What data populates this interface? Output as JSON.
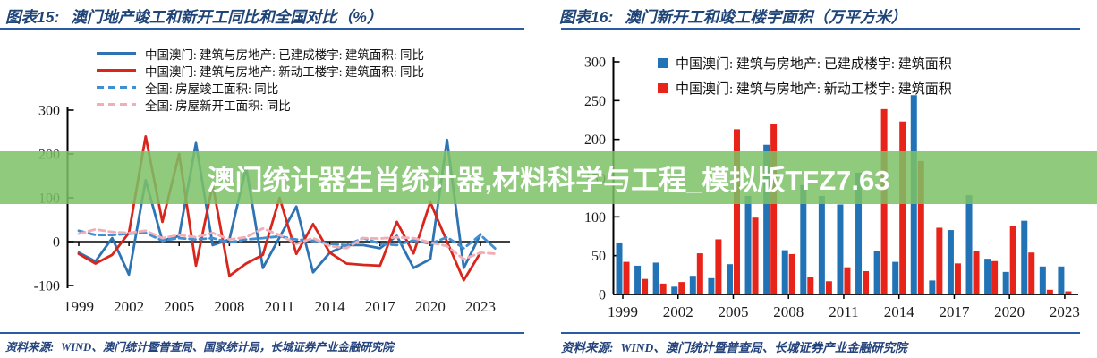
{
  "banner": {
    "text": "澳门统计器生肖统计器,材料科学与工程_模拟版TFZ7.63",
    "bg_color": "#7dc266",
    "text_color": "#ffffff"
  },
  "panels": [
    {
      "title_prefix": "图表15:",
      "title": "澳门地产竣工和新开工同比和全国对比（%）",
      "source_label": "资料来源:",
      "source": "WIND、澳门统计暨普查局、国家统计局，长城证券产业金融研究院"
    },
    {
      "title_prefix": "图表16:",
      "title": "澳门新开工和竣工楼宇面积（万平方米）",
      "source_label": "资料来源:",
      "source": "WIND、澳门统计暨普查局、长城证券产业金融研究院"
    }
  ],
  "chart_data": [
    {
      "type": "line",
      "title": "澳门地产竣工和新开工同比和全国对比（%）",
      "x": [
        1999,
        2000,
        2001,
        2002,
        2003,
        2004,
        2005,
        2006,
        2007,
        2008,
        2009,
        2010,
        2011,
        2012,
        2013,
        2014,
        2015,
        2016,
        2017,
        2018,
        2019,
        2020,
        2021,
        2022,
        2023,
        2024
      ],
      "xticks": [
        1999,
        2002,
        2005,
        2008,
        2011,
        2014,
        2017,
        2020,
        2023
      ],
      "yticks": [
        300,
        200,
        100,
        0,
        -100
      ],
      "ylim": [
        -100,
        300
      ],
      "grid": false,
      "legend_position": "top-left-inside",
      "series": [
        {
          "name": "中国澳门: 建筑与房地产: 已建成楼宇: 建筑面积: 同比",
          "color": "#2e74b5",
          "style": "solid",
          "values": [
            -25,
            -45,
            8,
            -75,
            140,
            2,
            13,
            225,
            -8,
            5,
            170,
            -60,
            10,
            80,
            -70,
            -25,
            -8,
            -8,
            -15,
            13,
            -60,
            -40,
            232,
            -60,
            17,
            null
          ]
        },
        {
          "name": "中国澳门: 建筑与房地产: 新动工楼宇: 建筑面积: 同比",
          "color": "#d8261c",
          "style": "solid",
          "values": [
            -28,
            -50,
            -30,
            20,
            240,
            45,
            200,
            -55,
            130,
            -78,
            -50,
            -30,
            100,
            -28,
            40,
            -25,
            -50,
            -53,
            -55,
            45,
            -27,
            90,
            0,
            -88,
            -25,
            null
          ]
        },
        {
          "name": "全国: 房屋竣工面积: 同比",
          "color": "#3f8fd2",
          "style": "dashed",
          "values": [
            25,
            15,
            15,
            18,
            20,
            2,
            8,
            5,
            8,
            -2,
            5,
            8,
            12,
            5,
            2,
            -5,
            -8,
            8,
            -5,
            -8,
            3,
            -5,
            10,
            -15,
            15,
            -20
          ]
        },
        {
          "name": "全国: 房屋新开工面积: 同比",
          "color": "#f2aeb6",
          "style": "dashed",
          "values": [
            18,
            28,
            22,
            20,
            25,
            8,
            15,
            10,
            20,
            5,
            10,
            30,
            15,
            -5,
            8,
            -10,
            -15,
            8,
            7,
            10,
            8,
            -2,
            -10,
            -40,
            -25,
            -28
          ]
        }
      ]
    },
    {
      "type": "bar",
      "title": "澳门新开工和竣工楼宇面积（万平方米）",
      "categories": [
        1999,
        2000,
        2001,
        2002,
        2003,
        2004,
        2005,
        2006,
        2007,
        2008,
        2009,
        2010,
        2011,
        2012,
        2013,
        2014,
        2015,
        2016,
        2017,
        2018,
        2019,
        2020,
        2021,
        2022,
        2023
      ],
      "xticks": [
        1999,
        2002,
        2005,
        2008,
        2011,
        2014,
        2017,
        2020,
        2023
      ],
      "yticks": [
        0,
        50,
        100,
        150,
        200,
        250,
        300
      ],
      "ylim": [
        0,
        300
      ],
      "grid": false,
      "legend_position": "top-inside",
      "series": [
        {
          "name": "中国澳门: 建筑与房地产: 已建成楼宇: 建筑面积",
          "color": "#2173b6",
          "values": [
            67,
            37,
            41,
            10,
            24,
            21,
            39,
            127,
            193,
            57,
            141,
            127,
            116,
            157,
            56,
            42,
            257,
            18,
            83,
            128,
            46,
            29,
            95,
            36,
            36
          ]
        },
        {
          "name": "中国澳门: 建筑与房地产: 新动工楼宇: 建筑面积",
          "color": "#e8231a",
          "values": [
            42,
            20,
            14,
            16,
            53,
            71,
            213,
            99,
            220,
            52,
            23,
            17,
            35,
            30,
            239,
            223,
            172,
            86,
            40,
            56,
            43,
            88,
            54,
            6,
            4
          ]
        }
      ]
    }
  ]
}
